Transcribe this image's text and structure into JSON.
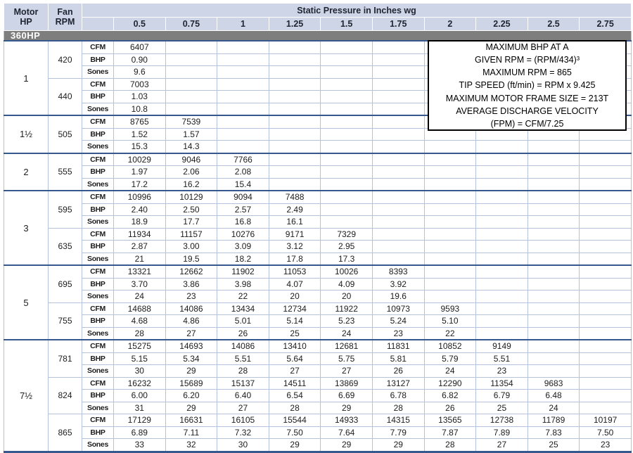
{
  "table": {
    "header": {
      "motor_line1": "Motor",
      "motor_line2": "HP",
      "fan_line1": "Fan",
      "fan_line2": "RPM",
      "static_pressure_title": "Static Pressure in Inches wg",
      "pressure_columns": [
        "0.5",
        "0.75",
        "1",
        "1.25",
        "1.5",
        "1.75",
        "2",
        "2.25",
        "2.5",
        "2.75"
      ]
    },
    "model_band": "360HP",
    "row_labels": [
      "CFM",
      "BHP",
      "Sones"
    ],
    "groups": [
      {
        "hp": "1",
        "rpms": [
          {
            "rpm": "420",
            "cfm": [
              "6407"
            ],
            "bhp": [
              "0.90"
            ],
            "sones": [
              "9.6"
            ]
          },
          {
            "rpm": "440",
            "cfm": [
              "7003"
            ],
            "bhp": [
              "1.03"
            ],
            "sones": [
              "10.8"
            ]
          }
        ]
      },
      {
        "hp": "1½",
        "rpms": [
          {
            "rpm": "505",
            "cfm": [
              "8765",
              "7539"
            ],
            "bhp": [
              "1.52",
              "1.57"
            ],
            "sones": [
              "15.3",
              "14.3"
            ]
          }
        ]
      },
      {
        "hp": "2",
        "rpms": [
          {
            "rpm": "555",
            "cfm": [
              "10029",
              "9046",
              "7766"
            ],
            "bhp": [
              "1.97",
              "2.06",
              "2.08"
            ],
            "sones": [
              "17.2",
              "16.2",
              "15.4"
            ]
          }
        ]
      },
      {
        "hp": "3",
        "rpms": [
          {
            "rpm": "595",
            "cfm": [
              "10996",
              "10129",
              "9094",
              "7488"
            ],
            "bhp": [
              "2.40",
              "2.50",
              "2.57",
              "2.49"
            ],
            "sones": [
              "18.9",
              "17.7",
              "16.8",
              "16.1"
            ]
          },
          {
            "rpm": "635",
            "cfm": [
              "11934",
              "11157",
              "10276",
              "9171",
              "7329"
            ],
            "bhp": [
              "2.87",
              "3.00",
              "3.09",
              "3.12",
              "2.95"
            ],
            "sones": [
              "21",
              "19.5",
              "18.2",
              "17.8",
              "17.3"
            ]
          }
        ]
      },
      {
        "hp": "5",
        "rpms": [
          {
            "rpm": "695",
            "cfm": [
              "13321",
              "12662",
              "11902",
              "11053",
              "10026",
              "8393"
            ],
            "bhp": [
              "3.70",
              "3.86",
              "3.98",
              "4.07",
              "4.09",
              "3.92"
            ],
            "sones": [
              "24",
              "23",
              "22",
              "20",
              "20",
              "19.6"
            ]
          },
          {
            "rpm": "755",
            "cfm": [
              "14688",
              "14086",
              "13434",
              "12734",
              "11922",
              "10973",
              "9593"
            ],
            "bhp": [
              "4.68",
              "4.86",
              "5.01",
              "5.14",
              "5.23",
              "5.24",
              "5.10"
            ],
            "sones": [
              "28",
              "27",
              "26",
              "25",
              "24",
              "23",
              "22"
            ]
          }
        ]
      },
      {
        "hp": "7½",
        "rpms": [
          {
            "rpm": "781",
            "cfm": [
              "15275",
              "14693",
              "14086",
              "13410",
              "12681",
              "11831",
              "10852",
              "9149"
            ],
            "bhp": [
              "5.15",
              "5.34",
              "5.51",
              "5.64",
              "5.75",
              "5.81",
              "5.79",
              "5.51"
            ],
            "sones": [
              "30",
              "29",
              "28",
              "27",
              "27",
              "26",
              "24",
              "23"
            ]
          },
          {
            "rpm": "824",
            "cfm": [
              "16232",
              "15689",
              "15137",
              "14511",
              "13869",
              "13127",
              "12290",
              "11354",
              "9683"
            ],
            "bhp": [
              "6.00",
              "6.20",
              "6.40",
              "6.54",
              "6.69",
              "6.78",
              "6.82",
              "6.79",
              "6.48"
            ],
            "sones": [
              "31",
              "29",
              "27",
              "28",
              "29",
              "28",
              "26",
              "25",
              "24"
            ]
          },
          {
            "rpm": "865",
            "cfm": [
              "17129",
              "16631",
              "16105",
              "15544",
              "14933",
              "14315",
              "13565",
              "12738",
              "11789",
              "10197"
            ],
            "bhp": [
              "6.89",
              "7.11",
              "7.32",
              "7.50",
              "7.64",
              "7.79",
              "7.87",
              "7.89",
              "7.83",
              "7.50"
            ],
            "sones": [
              "33",
              "32",
              "30",
              "29",
              "29",
              "29",
              "28",
              "27",
              "25",
              "23"
            ]
          }
        ]
      }
    ]
  },
  "info_box": {
    "lines": [
      "MAXIMUM BHP AT A",
      "GIVEN RPM = (RPM/434)³",
      "MAXIMUM RPM = 865",
      "TIP SPEED (ft/min) = RPM x 9.425",
      "MAXIMUM MOTOR FRAME SIZE = 213T",
      "AVERAGE DISCHARGE VELOCITY",
      "(FPM) = CFM/7.25"
    ]
  },
  "colors": {
    "header_bg": "#cdd5e7",
    "band_bg": "#7e7e7e",
    "grid_light": "#b5c2dc",
    "grid_navy": "#35598e",
    "text": "#1d1d1d"
  }
}
